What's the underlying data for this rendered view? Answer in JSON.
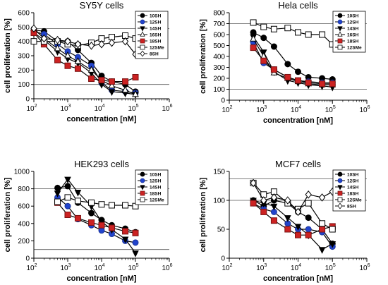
{
  "figure": {
    "background": "#ffffff"
  },
  "series_styles": {
    "10SH": {
      "fill": "#000000",
      "stroke": "#000000",
      "shape": "circle"
    },
    "12SH": {
      "fill": "#2244cc",
      "stroke": "#1a3399",
      "shape": "circle"
    },
    "14SH": {
      "fill": "#000000",
      "stroke": "#000000",
      "shape": "triangle-down"
    },
    "16SH": {
      "fill": "#ffffff",
      "stroke": "#000000",
      "shape": "triangle-up"
    },
    "18SH": {
      "fill": "#cc2222",
      "stroke": "#7a1111",
      "shape": "square"
    },
    "12SMe": {
      "fill": "#ffffff",
      "stroke": "#000000",
      "shape": "square"
    },
    "8SH": {
      "fill": "#ffffff",
      "stroke": "#000000",
      "shape": "diamond"
    }
  },
  "chart_data": [
    {
      "type": "line",
      "title": "SY5Y cells",
      "xlabel": "concentration [nM]",
      "ylabel": "cell proliferation [%]",
      "x_scale": "log",
      "xlim": [
        100,
        1000000
      ],
      "ylim": [
        0,
        600
      ],
      "x_ticks": [
        100,
        1000,
        10000,
        100000,
        1000000
      ],
      "x_tick_labels": [
        {
          "base": "10",
          "exp": "2"
        },
        {
          "base": "10",
          "exp": "3"
        },
        {
          "base": "10",
          "exp": "4"
        },
        {
          "base": "10",
          "exp": "5"
        },
        {
          "base": "10",
          "exp": "6"
        }
      ],
      "y_ticks": [
        0,
        100,
        200,
        300,
        400,
        500,
        600
      ],
      "y_tick_labels": [
        "0",
        "100",
        "200",
        "300",
        "400",
        "500",
        "600"
      ],
      "reference_lines": [
        100,
        490
      ],
      "legend_position": "top-right",
      "series": [
        {
          "name": "10SH",
          "x": [
            100,
            200,
            500,
            1000,
            2000,
            5000,
            10000,
            20000,
            50000,
            100000
          ],
          "y": [
            480,
            470,
            400,
            400,
            340,
            250,
            160,
            120,
            100,
            50
          ]
        },
        {
          "name": "12SH",
          "x": [
            100,
            200,
            500,
            1000,
            2000,
            5000,
            10000,
            20000,
            50000,
            100000
          ],
          "y": [
            470,
            450,
            380,
            330,
            290,
            230,
            110,
            60,
            50,
            40
          ]
        },
        {
          "name": "14SH",
          "x": [
            100,
            200,
            500,
            1000,
            2000,
            5000,
            10000,
            20000,
            50000,
            100000
          ],
          "y": [
            460,
            410,
            330,
            280,
            250,
            180,
            100,
            50,
            40,
            30
          ]
        },
        {
          "name": "16SH",
          "x": [
            100,
            200,
            500,
            1000,
            2000,
            5000,
            10000,
            20000,
            50000,
            100000
          ],
          "y": [
            490,
            420,
            350,
            300,
            260,
            200,
            130,
            90,
            60,
            30
          ]
        },
        {
          "name": "18SH",
          "x": [
            100,
            200,
            500,
            1000,
            2000,
            5000,
            10000,
            20000,
            50000,
            100000
          ],
          "y": [
            460,
            380,
            270,
            230,
            210,
            140,
            130,
            120,
            120,
            150
          ]
        },
        {
          "name": "12SMe",
          "x": [
            100,
            200,
            500,
            1000,
            2000,
            5000,
            10000,
            20000,
            50000,
            100000
          ],
          "y": [
            400,
            400,
            400,
            380,
            370,
            390,
            420,
            430,
            440,
            420
          ]
        },
        {
          "name": "8SH",
          "x": [
            100,
            200,
            500,
            1000,
            2000,
            5000,
            10000,
            20000,
            50000,
            100000
          ],
          "y": [
            490,
            420,
            410,
            400,
            380,
            370,
            380,
            390,
            400,
            310
          ]
        }
      ]
    },
    {
      "type": "line",
      "title": "Hela cells",
      "xlabel": "concentration [nM]",
      "ylabel": "cell proliferation [%]",
      "x_scale": "log",
      "xlim": [
        100,
        1000000
      ],
      "ylim": [
        0,
        800
      ],
      "x_ticks": [
        100,
        1000,
        10000,
        100000,
        1000000
      ],
      "x_tick_labels": [
        {
          "base": "10",
          "exp": "2"
        },
        {
          "base": "10",
          "exp": "3"
        },
        {
          "base": "10",
          "exp": "4"
        },
        {
          "base": "10",
          "exp": "5"
        },
        {
          "base": "10",
          "exp": "6"
        }
      ],
      "y_ticks": [
        0,
        100,
        200,
        300,
        400,
        500,
        600,
        700,
        800
      ],
      "y_tick_labels": [
        "0",
        "100",
        "200",
        "300",
        "400",
        "500",
        "600",
        "700",
        "800"
      ],
      "reference_lines": [
        100,
        700
      ],
      "legend_position": "top-right",
      "series": [
        {
          "name": "10SH",
          "x": [
            500,
            1000,
            2000,
            5000,
            10000,
            20000,
            50000,
            100000
          ],
          "y": [
            620,
            570,
            490,
            330,
            260,
            210,
            200,
            190
          ]
        },
        {
          "name": "12SH",
          "x": [
            500,
            1000,
            2000,
            5000,
            10000,
            20000,
            50000,
            100000
          ],
          "y": [
            530,
            340,
            280,
            210,
            180,
            170,
            160,
            160
          ]
        },
        {
          "name": "14SH",
          "x": [
            500,
            1000,
            2000,
            5000,
            10000,
            20000,
            50000,
            100000
          ],
          "y": [
            580,
            440,
            260,
            180,
            160,
            140,
            130,
            120
          ]
        },
        {
          "name": "16SH",
          "x": [
            500,
            1000,
            2000,
            5000,
            10000,
            20000,
            50000,
            100000
          ],
          "y": [
            560,
            400,
            250,
            200,
            170,
            150,
            140,
            140
          ]
        },
        {
          "name": "18SH",
          "x": [
            500,
            1000,
            2000,
            5000,
            10000,
            20000,
            50000,
            100000
          ],
          "y": [
            480,
            360,
            280,
            210,
            180,
            160,
            150,
            150
          ]
        },
        {
          "name": "12SMe",
          "x": [
            500,
            1000,
            2000,
            5000,
            10000,
            20000,
            50000,
            100000
          ],
          "y": [
            710,
            670,
            650,
            660,
            620,
            600,
            600,
            510
          ]
        }
      ]
    },
    {
      "type": "line",
      "title": "HEK293 cells",
      "xlabel": "concentration [nM]",
      "ylabel": "cell proliferation [%]",
      "x_scale": "log",
      "xlim": [
        100,
        1000000
      ],
      "ylim": [
        0,
        1000
      ],
      "x_ticks": [
        100,
        1000,
        10000,
        100000,
        1000000
      ],
      "x_tick_labels": [
        {
          "base": "10",
          "exp": "2"
        },
        {
          "base": "10",
          "exp": "3"
        },
        {
          "base": "10",
          "exp": "4"
        },
        {
          "base": "10",
          "exp": "5"
        },
        {
          "base": "10",
          "exp": "6"
        }
      ],
      "y_ticks": [
        0,
        200,
        400,
        600,
        800,
        1000
      ],
      "y_tick_labels": [
        "0",
        "200",
        "400",
        "600",
        "800",
        "1000"
      ],
      "reference_lines": [
        100,
        800
      ],
      "legend_position": "top-right",
      "series": [
        {
          "name": "10SH",
          "x": [
            500,
            1000,
            2000,
            5000,
            10000,
            20000,
            50000,
            100000
          ],
          "y": [
            810,
            830,
            640,
            520,
            440,
            380,
            340,
            300
          ]
        },
        {
          "name": "12SH",
          "x": [
            500,
            1000,
            2000,
            5000,
            10000,
            20000,
            50000,
            100000
          ],
          "y": [
            700,
            600,
            450,
            380,
            320,
            280,
            200,
            180
          ]
        },
        {
          "name": "14SH",
          "x": [
            500,
            1000,
            2000,
            5000,
            10000,
            20000,
            50000,
            100000
          ],
          "y": [
            750,
            910,
            760,
            600,
            420,
            330,
            220,
            60
          ]
        },
        {
          "name": "18SH",
          "x": [
            500,
            1000,
            2000,
            5000,
            10000,
            20000,
            50000,
            100000
          ],
          "y": [
            640,
            500,
            460,
            410,
            380,
            350,
            310,
            290
          ]
        },
        {
          "name": "12SMe",
          "x": [
            500,
            1000,
            2000,
            5000,
            10000,
            20000,
            50000,
            100000
          ],
          "y": [
            650,
            700,
            660,
            640,
            620,
            610,
            610,
            600
          ]
        }
      ]
    },
    {
      "type": "line",
      "title": "MCF7 cells",
      "xlabel": "concentration [nM]",
      "ylabel": "cell proliferation [%]",
      "x_scale": "log",
      "xlim": [
        100,
        1000000
      ],
      "ylim": [
        0,
        150
      ],
      "x_ticks": [
        100,
        1000,
        10000,
        100000,
        1000000
      ],
      "x_tick_labels": [
        {
          "base": "10",
          "exp": "2"
        },
        {
          "base": "10",
          "exp": "3"
        },
        {
          "base": "10",
          "exp": "4"
        },
        {
          "base": "10",
          "exp": "5"
        },
        {
          "base": "10",
          "exp": "6"
        }
      ],
      "y_ticks": [
        0,
        50,
        100,
        150
      ],
      "y_tick_labels": [
        "0",
        "50",
        "100",
        "150"
      ],
      "reference_lines": [
        100,
        137
      ],
      "legend_position": "top-right",
      "series": [
        {
          "name": "10SH",
          "x": [
            500,
            1000,
            2000,
            5000,
            10000,
            20000,
            50000,
            100000
          ],
          "y": [
            100,
            90,
            100,
            95,
            80,
            70,
            50,
            25
          ]
        },
        {
          "name": "12SH",
          "x": [
            500,
            1000,
            2000,
            5000,
            10000,
            20000,
            50000,
            100000
          ],
          "y": [
            95,
            85,
            80,
            60,
            50,
            50,
            45,
            20
          ]
        },
        {
          "name": "14SH",
          "x": [
            500,
            1000,
            2000,
            5000,
            10000,
            20000,
            50000,
            100000
          ],
          "y": [
            100,
            95,
            90,
            70,
            55,
            40,
            15,
            25
          ]
        },
        {
          "name": "18SH",
          "x": [
            500,
            1000,
            2000,
            5000,
            10000,
            20000,
            50000,
            100000
          ],
          "y": [
            95,
            80,
            65,
            50,
            40,
            40,
            50,
            55
          ]
        },
        {
          "name": "12SMe",
          "x": [
            500,
            1000,
            2000,
            5000,
            10000,
            20000,
            50000,
            100000
          ],
          "y": [
            130,
            110,
            115,
            95,
            85,
            95,
            60,
            50
          ]
        },
        {
          "name": "8SH",
          "x": [
            500,
            1000,
            2000,
            5000,
            10000,
            20000,
            50000,
            100000
          ],
          "y": [
            130,
            100,
            105,
            100,
            80,
            110,
            105,
            115
          ]
        }
      ]
    }
  ]
}
